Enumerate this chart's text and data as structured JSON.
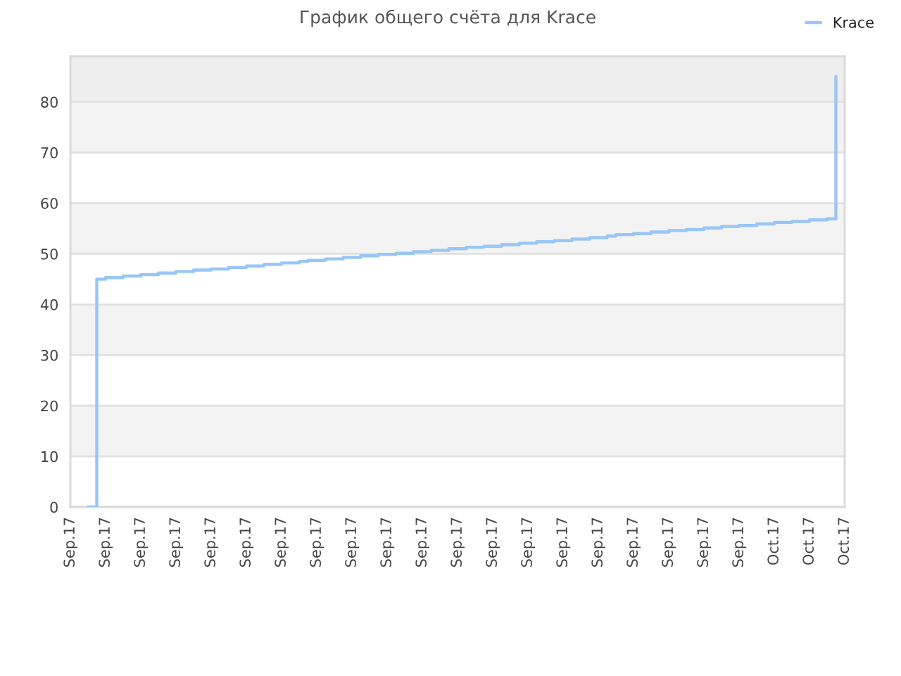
{
  "chart_data": {
    "type": "step",
    "title": "График общего счёта для Krace",
    "categories": [
      "Sep.17",
      null,
      null,
      null,
      "Sep.17",
      null,
      null,
      null,
      "Sep.17",
      null,
      null,
      null,
      "Sep.17",
      null,
      null,
      null,
      "Sep.17",
      null,
      null,
      null,
      "Sep.17",
      null,
      null,
      null,
      "Sep.17",
      null,
      null,
      null,
      "Sep.17",
      null,
      null,
      null,
      "Sep.17",
      null,
      null,
      null,
      "Sep.17",
      null,
      null,
      null,
      "Sep.17",
      null,
      null,
      null,
      "Sep.17",
      null,
      null,
      null,
      "Sep.17",
      null,
      null,
      null,
      "Sep.17",
      null,
      null,
      null,
      "Sep.17",
      null,
      null,
      null,
      "Sep.17",
      null,
      null,
      null,
      "Sep.17",
      null,
      null,
      null,
      "Sep.17",
      null,
      null,
      null,
      "Sep.17",
      null,
      null,
      null,
      "Sep.17",
      null,
      null,
      null,
      "Oct.17",
      null,
      null,
      null,
      "Oct.17",
      null,
      null,
      null,
      "Oct.17"
    ],
    "ylim": [
      0,
      89
    ],
    "yticks": [
      0,
      10,
      20,
      30,
      40,
      50,
      60,
      70,
      80
    ],
    "grid": "y",
    "legend": "top right",
    "bands": [
      {
        "axis": "y",
        "from": 10,
        "to": 20,
        "color": "#f3f3f3"
      },
      {
        "axis": "y",
        "from": 30,
        "to": 40,
        "color": "#f3f3f3"
      },
      {
        "axis": "y",
        "from": 50,
        "to": 60,
        "color": "#f3f3f3"
      },
      {
        "axis": "y",
        "from": 70,
        "to": 80,
        "color": "#f3f3f3"
      },
      {
        "axis": "y",
        "from": 80,
        "to": 89,
        "color": "#eeeeee"
      }
    ],
    "series": [
      {
        "name": "Krace",
        "color": "#99c6f4",
        "values": [
          null,
          null,
          0,
          45.0,
          45.3,
          45.3,
          45.6,
          45.6,
          45.9,
          45.9,
          46.2,
          46.2,
          46.5,
          46.5,
          46.8,
          46.8,
          47.0,
          47.0,
          47.3,
          47.3,
          47.6,
          47.6,
          47.9,
          47.9,
          48.2,
          48.2,
          48.5,
          48.7,
          48.7,
          49.0,
          49.0,
          49.3,
          49.3,
          49.6,
          49.6,
          49.9,
          49.9,
          50.1,
          50.1,
          50.4,
          50.4,
          50.7,
          50.7,
          51.0,
          51.0,
          51.3,
          51.3,
          51.5,
          51.5,
          51.8,
          51.8,
          52.1,
          52.1,
          52.4,
          52.4,
          52.6,
          52.6,
          52.9,
          52.9,
          53.2,
          53.2,
          53.5,
          53.8,
          53.8,
          54.0,
          54.0,
          54.3,
          54.3,
          54.6,
          54.6,
          54.8,
          54.8,
          55.1,
          55.1,
          55.4,
          55.4,
          55.6,
          55.6,
          55.9,
          55.9,
          56.2,
          56.2,
          56.4,
          56.4,
          56.7,
          56.7,
          56.9,
          85.0,
          null
        ]
      }
    ]
  }
}
